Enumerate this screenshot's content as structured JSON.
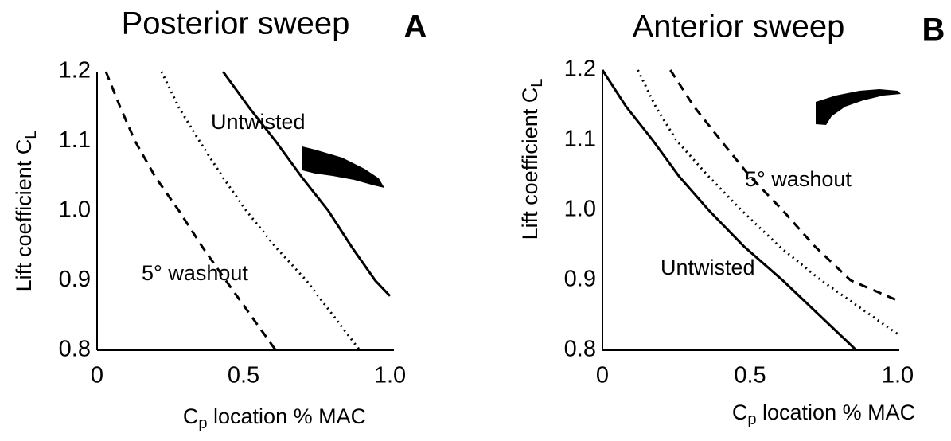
{
  "chart_data": [
    {
      "type": "line",
      "title": "Posterior sweep",
      "panel_label": "A",
      "xlabel": "C",
      "xlabel_sub": "p",
      "xlabel_rest": " location % MAC",
      "ylabel": "Lift coefficient C",
      "ylabel_sub": "L",
      "xlim": [
        0,
        1
      ],
      "ylim": [
        0.8,
        1.2
      ],
      "xticks": [
        0,
        0.5,
        {
          "value": 1,
          "label": "1.0"
        }
      ],
      "yticks": [
        0.8,
        0.9,
        {
          "value": 1,
          "label": "1.0"
        },
        1.1,
        1.2
      ],
      "series": [
        {
          "name": "Untwisted",
          "style": "solid",
          "color": "#000",
          "x": [
            0.43,
            0.52,
            0.61,
            0.7,
            0.79,
            0.87,
            0.95,
            1.0
          ],
          "values": [
            1.2,
            1.148,
            1.1,
            1.048,
            1.0,
            0.948,
            0.9,
            0.878
          ]
        },
        {
          "style": "dotted",
          "color": "#000",
          "x": [
            0.22,
            0.28,
            0.35,
            0.43,
            0.51,
            0.61,
            0.715,
            0.897
          ],
          "values": [
            1.2,
            1.148,
            1.1,
            1.048,
            1.0,
            0.948,
            0.9,
            0.8
          ]
        },
        {
          "name": "5° washout",
          "style": "dashed",
          "color": "#000",
          "x": [
            0.03,
            0.08,
            0.13,
            0.2,
            0.28,
            0.36,
            0.44,
            0.61
          ],
          "values": [
            1.2,
            1.148,
            1.1,
            1.048,
            1.0,
            0.948,
            0.9,
            0.8
          ]
        }
      ]
    },
    {
      "type": "line",
      "title": "Anterior sweep",
      "panel_label": "B",
      "xlabel": "C",
      "xlabel_sub": "p",
      "xlabel_rest": " location % MAC",
      "ylabel": "Lift coefficient C",
      "ylabel_sub": "L",
      "xlim": [
        0,
        1
      ],
      "ylim": [
        0.8,
        1.2
      ],
      "xticks": [
        0,
        0.5,
        {
          "value": 1,
          "label": "1.0"
        }
      ],
      "yticks": [
        0.8,
        0.9,
        {
          "value": 1,
          "label": "1.0"
        },
        1.1,
        1.2
      ],
      "series": [
        {
          "name": "Untwisted",
          "style": "solid",
          "color": "#000",
          "x": [
            0.0,
            0.08,
            0.17,
            0.26,
            0.36,
            0.48,
            0.61,
            0.86
          ],
          "values": [
            1.2,
            1.148,
            1.1,
            1.048,
            1.0,
            0.948,
            0.9,
            0.8
          ]
        },
        {
          "style": "dotted",
          "color": "#000",
          "x": [
            0.12,
            0.18,
            0.25,
            0.36,
            0.47,
            0.6,
            0.74,
            1.0
          ],
          "values": [
            1.2,
            1.148,
            1.1,
            1.048,
            1.0,
            0.948,
            0.9,
            0.823
          ]
        },
        {
          "name": "5° washout",
          "style": "dashed",
          "color": "#000",
          "x": [
            0.23,
            0.31,
            0.4,
            0.5,
            0.61,
            0.72,
            0.84,
            1.0
          ],
          "values": [
            1.2,
            1.148,
            1.1,
            1.048,
            1.0,
            0.948,
            0.9,
            0.871
          ]
        }
      ]
    }
  ]
}
